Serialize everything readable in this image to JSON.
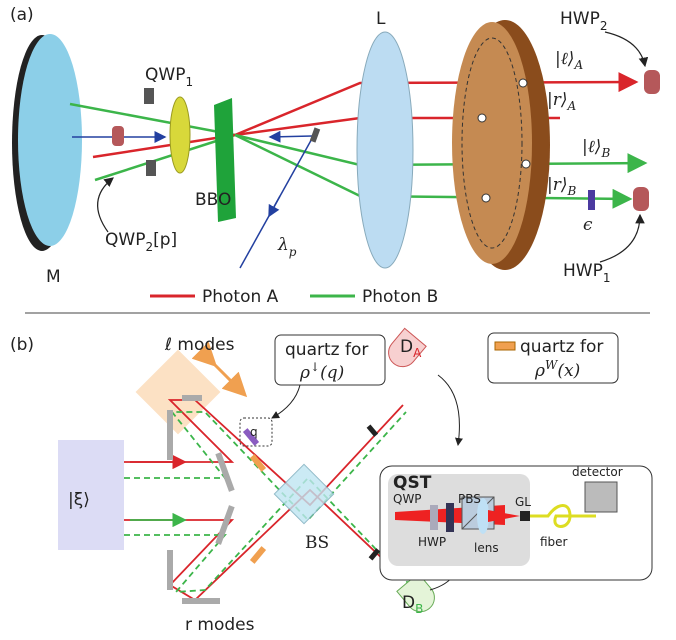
{
  "panel_a": {
    "label": "(a)",
    "mirror": "M",
    "lens": "L",
    "hwp2": {
      "text": "HWP",
      "sub": "2"
    },
    "qwp1": {
      "text": "QWP",
      "sub": "1"
    },
    "bbo": "BBO",
    "pump": {
      "text": "λ",
      "sub": "p"
    },
    "qwp2": {
      "text": "QWP",
      "sub": "2",
      "suffix": "[p]"
    },
    "states": [
      {
        "text": "|ℓ⟩",
        "sub": "A"
      },
      {
        "text": "|r⟩",
        "sub": "A"
      },
      {
        "text": "|ℓ⟩",
        "sub": "B"
      },
      {
        "text": "|r⟩",
        "sub": "B"
      }
    ],
    "epsilon": "ϵ",
    "hwp1": {
      "text": "HWP",
      "sub": "1"
    },
    "legend": [
      {
        "name": "Photon A",
        "color": "#d9252b"
      },
      {
        "name": "Photon B",
        "color": "#3cb54a"
      }
    ]
  },
  "panel_b": {
    "label": "(b)",
    "l_modes": "ℓ modes",
    "r_modes": "r modes",
    "xi": "|ξ⟩",
    "quartz_q": {
      "text": "quartz for",
      "rho": "ρ",
      "sup": "↓",
      "arg": "(q)"
    },
    "quartz_w": {
      "text": "quartz for",
      "rho": "ρ",
      "sup": "W",
      "arg": "(x)"
    },
    "q": "q",
    "da": {
      "text": "D",
      "sub": "A"
    },
    "db": {
      "text": "D",
      "sub": "B"
    },
    "bs": "BS",
    "qst": {
      "title": "QST",
      "qwp": "QWP",
      "pbs": "PBS",
      "hwp": "HWP",
      "lens": "lens",
      "gl": "GL",
      "fiber": "fiber",
      "detector": "detector"
    }
  }
}
